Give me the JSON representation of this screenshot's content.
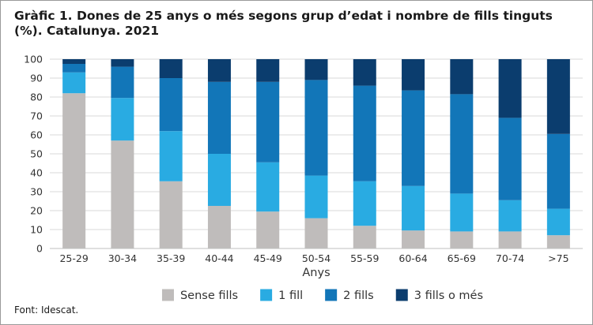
{
  "title": "Gràfic 1. Dones de 25 anys o més segons grup d’edat i nombre de fills tinguts (%). Catalunya. 2021",
  "source": "Font: Idescat.",
  "chart_data": {
    "type": "bar",
    "stacked": true,
    "xlabel": "Anys",
    "ylabel": "",
    "ylim": [
      0,
      100
    ],
    "yticks": [
      0,
      10,
      20,
      30,
      40,
      50,
      60,
      70,
      80,
      90,
      100
    ],
    "grid": true,
    "legend_position": "bottom",
    "categories": [
      "25-29",
      "30-34",
      "35-39",
      "40-44",
      "45-49",
      "50-54",
      "55-59",
      "60-64",
      "65-69",
      "70-74",
      ">75"
    ],
    "series": [
      {
        "name": "Sense fills",
        "color": "#bfbcbb",
        "values": [
          82,
          57,
          35.5,
          22.5,
          19.5,
          16,
          12,
          9.5,
          9,
          9,
          7
        ]
      },
      {
        "name": "1 fill",
        "color": "#29abe2",
        "values": [
          11,
          22.5,
          26.5,
          27.5,
          26,
          22.5,
          23.5,
          23.5,
          20,
          16.5,
          14
        ]
      },
      {
        "name": "2 fills",
        "color": "#1276b8",
        "values": [
          4.5,
          16.5,
          28,
          38,
          42.5,
          50.5,
          50.5,
          50.5,
          52.5,
          43.5,
          39.5
        ]
      },
      {
        "name": "3 fills o més",
        "color": "#0b3d6e",
        "values": [
          2.5,
          4,
          10,
          12,
          12,
          11,
          14,
          16.5,
          18.5,
          31,
          39.5
        ]
      }
    ]
  }
}
